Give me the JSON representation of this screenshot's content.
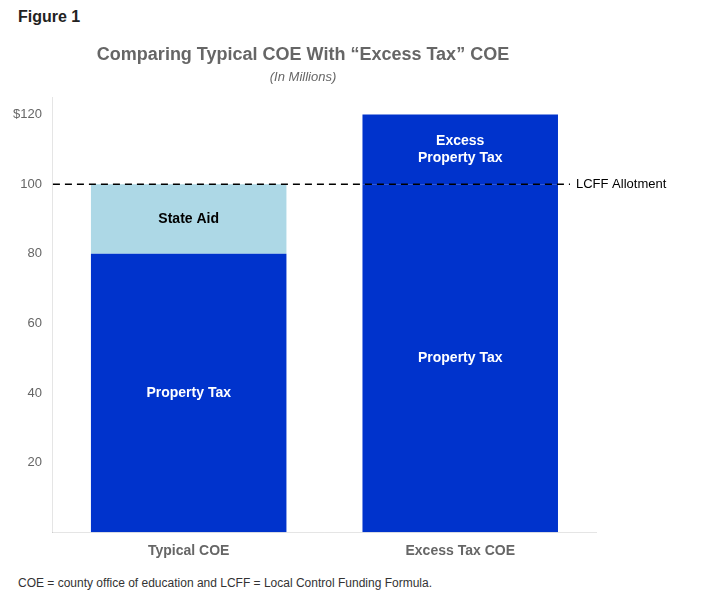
{
  "chart_data": {
    "type": "bar",
    "figure_label": "Figure 1",
    "title": "Comparing Typical COE With “Excess Tax” COE",
    "subtitle": "(In Millions)",
    "footnote": "COE = county office of education and LCFF = Local Control Funding Formula.",
    "categories": [
      "Typical COE",
      "Excess Tax COE"
    ],
    "series": [
      {
        "name": "Property Tax",
        "color": "#0033CC",
        "values": [
          80,
          100
        ]
      },
      {
        "name": "State Aid",
        "color": "#ADD8E6",
        "values": [
          20,
          null
        ]
      },
      {
        "name": "Excess\nProperty Tax",
        "color": "#0033CC",
        "values": [
          null,
          20
        ]
      }
    ],
    "stacked": true,
    "annotations": [
      {
        "y": 100,
        "text": "LCFF Allotment",
        "line_style": "dashed"
      }
    ],
    "ylim": [
      0,
      125
    ],
    "yticks": [
      20,
      40,
      60,
      80,
      100,
      {
        "value": 120,
        "label": "$120"
      }
    ],
    "grid": false
  }
}
